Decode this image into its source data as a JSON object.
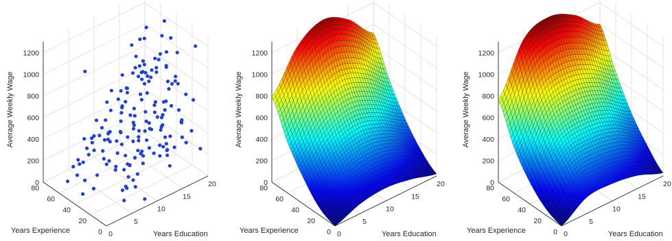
{
  "chart_data": [
    {
      "type": "scatter3d",
      "title": "",
      "xlabel": "Years Education",
      "ylabel": "Years Experience",
      "zlabel": "Average Weekly Wage",
      "xlim": [
        0,
        20
      ],
      "ylim": [
        0,
        80
      ],
      "zlim": [
        0,
        1300
      ],
      "x_ticks": [
        "0",
        "5",
        "10",
        "15",
        "20"
      ],
      "y_ticks": [
        "0",
        "20",
        "40",
        "60",
        "80"
      ],
      "z_ticks": [
        "0",
        "200",
        "400",
        "600",
        "800",
        "1000",
        "1200"
      ],
      "grid": true,
      "marker_color": "#1f3fd8",
      "points": [
        {
          "x": 2.7,
          "y": 44.5,
          "z": 1143
        },
        {
          "x": 18.2,
          "y": 4.3,
          "z": 1223
        },
        {
          "x": 10.4,
          "y": 3.6,
          "z": 1207
        },
        {
          "x": 7.5,
          "y": 41.8,
          "z": 868
        },
        {
          "x": 14.1,
          "y": 58.6,
          "z": 1052
        },
        {
          "x": 19.8,
          "y": 53.9,
          "z": 1167
        },
        {
          "x": 17.9,
          "y": 64.7,
          "z": 1096
        },
        {
          "x": 17.9,
          "y": 44.8,
          "z": 1120
        },
        {
          "x": 17.4,
          "y": 63.8,
          "z": 1010
        },
        {
          "x": 15.8,
          "y": 40.2,
          "z": 982
        },
        {
          "x": 11.8,
          "y": 22.1,
          "z": 955
        },
        {
          "x": 13.9,
          "y": 45.0,
          "z": 872
        },
        {
          "x": 13.5,
          "y": 30.6,
          "z": 909
        },
        {
          "x": 13.1,
          "y": 32.3,
          "z": 921
        },
        {
          "x": 18.7,
          "y": 30.6,
          "z": 1018
        },
        {
          "x": 14.6,
          "y": 36.5,
          "z": 921
        },
        {
          "x": 18.1,
          "y": 40.4,
          "z": 988
        },
        {
          "x": 15.0,
          "y": 59.0,
          "z": 924
        },
        {
          "x": 17.6,
          "y": 70.8,
          "z": 963
        },
        {
          "x": 19.5,
          "y": 43.9,
          "z": 1067
        },
        {
          "x": 18.0,
          "y": 40.1,
          "z": 864
        },
        {
          "x": 17.8,
          "y": 46.3,
          "z": 946
        },
        {
          "x": 16.4,
          "y": 59.0,
          "z": 849
        },
        {
          "x": 10.6,
          "y": 41.8,
          "z": 817
        },
        {
          "x": 13.7,
          "y": 43.2,
          "z": 822
        },
        {
          "x": 12.4,
          "y": 35.1,
          "z": 704
        },
        {
          "x": 10.5,
          "y": 49.1,
          "z": 759
        },
        {
          "x": 15.5,
          "y": 63.1,
          "z": 787
        },
        {
          "x": 17.6,
          "y": 30.0,
          "z": 757
        },
        {
          "x": 17.5,
          "y": 36.7,
          "z": 880
        },
        {
          "x": 13.1,
          "y": 32.6,
          "z": 762
        },
        {
          "x": 14.1,
          "y": 50.2,
          "z": 804
        },
        {
          "x": 13.3,
          "y": 23.4,
          "z": 722
        },
        {
          "x": 18.4,
          "y": 52.2,
          "z": 850
        },
        {
          "x": 13.6,
          "y": 67.3,
          "z": 742
        },
        {
          "x": 15.9,
          "y": 54.1,
          "z": 852
        },
        {
          "x": 16.3,
          "y": 41.5,
          "z": 837
        },
        {
          "x": 13.6,
          "y": 26.6,
          "z": 669
        },
        {
          "x": 12.3,
          "y": 53.7,
          "z": 720
        },
        {
          "x": 17.7,
          "y": 13.2,
          "z": 743
        },
        {
          "x": 14.2,
          "y": 15.8,
          "z": 747
        },
        {
          "x": 9.2,
          "y": 17.9,
          "z": 578
        },
        {
          "x": 11.8,
          "y": 51.8,
          "z": 615
        },
        {
          "x": 11.2,
          "y": 36.1,
          "z": 578
        },
        {
          "x": 9.6,
          "y": 56.2,
          "z": 563
        },
        {
          "x": 10.7,
          "y": 33.7,
          "z": 669
        },
        {
          "x": 15.8,
          "y": 68.1,
          "z": 705
        },
        {
          "x": 11.9,
          "y": 27.1,
          "z": 644
        },
        {
          "x": 11.6,
          "y": 24.1,
          "z": 579
        },
        {
          "x": 9.9,
          "y": 43.6,
          "z": 661
        },
        {
          "x": 16.8,
          "y": 29.0,
          "z": 733
        },
        {
          "x": 12.0,
          "y": 50.7,
          "z": 700
        },
        {
          "x": 16.0,
          "y": 56.8,
          "z": 770
        },
        {
          "x": 16.8,
          "y": 65.9,
          "z": 759
        },
        {
          "x": 19.4,
          "y": 37.3,
          "z": 746
        },
        {
          "x": 8.8,
          "y": 38.3,
          "z": 572
        },
        {
          "x": 16.2,
          "y": 54.5,
          "z": 768
        },
        {
          "x": 11.1,
          "y": 70.7,
          "z": 531
        },
        {
          "x": 12.9,
          "y": 21.7,
          "z": 644
        },
        {
          "x": 14.9,
          "y": 13.6,
          "z": 699
        },
        {
          "x": 6.1,
          "y": 51.9,
          "z": 574
        },
        {
          "x": 18.6,
          "y": 32.5,
          "z": 747
        },
        {
          "x": 5.4,
          "y": 50.5,
          "z": 452
        },
        {
          "x": 18.2,
          "y": 26.4,
          "z": 762
        },
        {
          "x": 11.5,
          "y": 19.1,
          "z": 538
        },
        {
          "x": 16.5,
          "y": 33.6,
          "z": 596
        },
        {
          "x": 15.4,
          "y": 50.8,
          "z": 703
        },
        {
          "x": 7.5,
          "y": 30.5,
          "z": 544
        },
        {
          "x": 7.9,
          "y": 56.5,
          "z": 440
        },
        {
          "x": 9.5,
          "y": 62.3,
          "z": 445
        },
        {
          "x": 10.7,
          "y": 33.7,
          "z": 514
        },
        {
          "x": 17.9,
          "y": 37.3,
          "z": 736
        },
        {
          "x": 9.1,
          "y": 17.8,
          "z": 489
        },
        {
          "x": 14.0,
          "y": 18.7,
          "z": 610
        },
        {
          "x": 12.5,
          "y": 10.8,
          "z": 573
        },
        {
          "x": 7.1,
          "y": 41.1,
          "z": 500
        },
        {
          "x": 12.7,
          "y": 62.0,
          "z": 488
        },
        {
          "x": 8.0,
          "y": 38.5,
          "z": 406
        },
        {
          "x": 16.6,
          "y": 15.0,
          "z": 614
        },
        {
          "x": 6.4,
          "y": 43.4,
          "z": 428
        },
        {
          "x": 13.0,
          "y": 12.6,
          "z": 570
        },
        {
          "x": 5.3,
          "y": 52.7,
          "z": 423
        },
        {
          "x": 13.4,
          "y": 71.2,
          "z": 503
        },
        {
          "x": 14.5,
          "y": 23.2,
          "z": 551
        },
        {
          "x": 15.2,
          "y": 54.7,
          "z": 591
        },
        {
          "x": 7.5,
          "y": 12.1,
          "z": 396
        },
        {
          "x": 8.1,
          "y": 47.5,
          "z": 352
        },
        {
          "x": 8.6,
          "y": 53.1,
          "z": 386
        },
        {
          "x": 10.6,
          "y": 33.9,
          "z": 483
        },
        {
          "x": 3.8,
          "y": 46.8,
          "z": 335
        },
        {
          "x": 4.7,
          "y": 54.9,
          "z": 332
        },
        {
          "x": 19.7,
          "y": 16.7,
          "z": 627
        },
        {
          "x": 10.7,
          "y": 50.6,
          "z": 361
        },
        {
          "x": 10.1,
          "y": 38.1,
          "z": 396
        },
        {
          "x": 16.7,
          "y": 12.6,
          "z": 514
        },
        {
          "x": 16.5,
          "y": 10.6,
          "z": 546
        },
        {
          "x": 16.7,
          "y": 33.4,
          "z": 518
        },
        {
          "x": 5.1,
          "y": 60.9,
          "z": 380
        },
        {
          "x": 8.1,
          "y": 60.9,
          "z": 341
        },
        {
          "x": 14.2,
          "y": 22.5,
          "z": 446
        },
        {
          "x": 5.5,
          "y": 38.6,
          "z": 299
        },
        {
          "x": 14.0,
          "y": 71.0,
          "z": 364
        },
        {
          "x": 4.1,
          "y": 62.2,
          "z": 202
        },
        {
          "x": 11.3,
          "y": 31.9,
          "z": 401
        },
        {
          "x": 11.0,
          "y": 16.4,
          "z": 385
        },
        {
          "x": 13.9,
          "y": 59.1,
          "z": 405
        },
        {
          "x": 7.7,
          "y": 20.0,
          "z": 286
        },
        {
          "x": 10.3,
          "y": 6.1,
          "z": 404
        },
        {
          "x": 9.8,
          "y": 59.8,
          "z": 337
        },
        {
          "x": 3.2,
          "y": 50.0,
          "z": 262
        },
        {
          "x": 8.3,
          "y": 71.4,
          "z": 217
        },
        {
          "x": 10.2,
          "y": 46.1,
          "z": 286
        },
        {
          "x": 5.8,
          "y": 25.8,
          "z": 254
        },
        {
          "x": 2.9,
          "y": 60.7,
          "z": 174
        },
        {
          "x": 7.2,
          "y": 61.9,
          "z": 220
        },
        {
          "x": 9.1,
          "y": 12.2,
          "z": 307
        },
        {
          "x": 18.4,
          "y": 23.1,
          "z": 413
        },
        {
          "x": 7.5,
          "y": 52.9,
          "z": 253
        },
        {
          "x": 9.2,
          "y": 35.1,
          "z": 261
        },
        {
          "x": 8.0,
          "y": 48.0,
          "z": 174
        },
        {
          "x": 15.3,
          "y": 44.3,
          "z": 374
        },
        {
          "x": 14.8,
          "y": 61.1,
          "z": 305
        },
        {
          "x": 10.8,
          "y": 24.5,
          "z": 317
        },
        {
          "x": 10.8,
          "y": 67.3,
          "z": 210
        },
        {
          "x": 6.7,
          "y": 9.2,
          "z": 223
        },
        {
          "x": 8.3,
          "y": 26.6,
          "z": 246
        },
        {
          "x": 3.7,
          "y": 57.9,
          "z": 194
        },
        {
          "x": 18.7,
          "y": 12.5,
          "z": 385
        },
        {
          "x": 12.7,
          "y": 14.0,
          "z": 284
        },
        {
          "x": 5.8,
          "y": 11.4,
          "z": 158
        },
        {
          "x": 8.5,
          "y": 15.2,
          "z": 207
        },
        {
          "x": 14.6,
          "y": 26.4,
          "z": 275
        },
        {
          "x": 8.4,
          "y": 31.7,
          "z": 166
        },
        {
          "x": 3.6,
          "y": 50.5,
          "z": 83
        },
        {
          "x": 10.5,
          "y": 53.5,
          "z": 160
        },
        {
          "x": 15.9,
          "y": 27.9,
          "z": 313
        },
        {
          "x": 14.7,
          "y": 18.6,
          "z": 327
        },
        {
          "x": 7.9,
          "y": 22.9,
          "z": 155
        },
        {
          "x": 18.1,
          "y": 51.8,
          "z": 328
        },
        {
          "x": 14.0,
          "y": 18.1,
          "z": 318
        },
        {
          "x": 3.3,
          "y": 37.3,
          "z": 80
        },
        {
          "x": 13.0,
          "y": 40.1,
          "z": 165
        },
        {
          "x": 14.1,
          "y": 39.7,
          "z": 267
        },
        {
          "x": 2.2,
          "y": 44.1,
          "z": 21
        },
        {
          "x": 13.4,
          "y": 5.9,
          "z": 217
        },
        {
          "x": 15.8,
          "y": 24.5,
          "z": 216
        },
        {
          "x": 4.6,
          "y": 66.6,
          "z": 26
        },
        {
          "x": 16.2,
          "y": 47.2,
          "z": 280
        },
        {
          "x": 14.2,
          "y": 51.5,
          "z": 109
        },
        {
          "x": 6.7,
          "y": 18.6,
          "z": 117
        },
        {
          "x": 14.7,
          "y": 60.8,
          "z": 135
        },
        {
          "x": 9.2,
          "y": 47.2,
          "z": 98
        },
        {
          "x": 2.5,
          "y": 65.2,
          "z": 25
        },
        {
          "x": 16.2,
          "y": 27.1,
          "z": 142
        },
        {
          "x": 19.2,
          "y": 22.5,
          "z": 214
        },
        {
          "x": 19.5,
          "y": 29.5,
          "z": 220
        },
        {
          "x": 7.3,
          "y": 58.6,
          "z": 4
        },
        {
          "x": 6.9,
          "y": 24.0,
          "z": 49
        },
        {
          "x": 18.1,
          "y": 30.3,
          "z": 156
        },
        {
          "x": 14.5,
          "y": 46.7,
          "z": 77
        },
        {
          "x": 10.0,
          "y": 64.1,
          "z": 15
        },
        {
          "x": 19.2,
          "y": 42.8,
          "z": 169
        },
        {
          "x": 17.6,
          "y": 64.4,
          "z": 145
        },
        {
          "x": 19.8,
          "y": 8.4,
          "z": 215
        },
        {
          "x": 12.5,
          "y": 50.9,
          "z": 13
        },
        {
          "x": 5.9,
          "y": 15.5,
          "z": 20
        },
        {
          "x": 18.4,
          "y": 41.7,
          "z": 62
        },
        {
          "x": 9.7,
          "y": 25.6,
          "z": 8
        },
        {
          "x": 8.6,
          "y": 6.7,
          "z": 16
        }
      ]
    },
    {
      "type": "surface3d",
      "title": "",
      "xlabel": "Years Education",
      "ylabel": "Years Experience",
      "zlabel": "Average Weekly Wage",
      "xlim": [
        0,
        20
      ],
      "ylim": [
        0,
        80
      ],
      "zlim": [
        0,
        1300
      ],
      "x_ticks": [
        "0",
        "5",
        "10",
        "15",
        "20"
      ],
      "y_ticks": [
        "0",
        "20",
        "40",
        "60",
        "80"
      ],
      "z_ticks": [
        "0",
        "200",
        "400",
        "600",
        "800",
        "1000",
        "1200"
      ],
      "grid": true,
      "colormap": "jet",
      "mesh_size": [
        41,
        41
      ],
      "surface_values": {
        "x": [
          0,
          5,
          10,
          15,
          20
        ],
        "y": [
          0,
          20,
          40,
          60,
          80
        ],
        "z": [
          [
            0,
            90,
            120,
            85,
            20
          ],
          [
            70,
            260,
            320,
            270,
            140
          ],
          [
            240,
            470,
            560,
            480,
            330
          ],
          [
            470,
            760,
            880,
            790,
            590
          ],
          [
            790,
            1140,
            1270,
            1160,
            920
          ]
        ]
      }
    },
    {
      "type": "surface3d",
      "title": "",
      "xlabel": "Years Education",
      "ylabel": "Years Experience",
      "zlabel": "Average Weekly Wage",
      "xlim": [
        0,
        20
      ],
      "ylim": [
        0,
        80
      ],
      "zlim": [
        0,
        1300
      ],
      "x_ticks": [
        "0",
        "5",
        "10",
        "15",
        "20"
      ],
      "y_ticks": [
        "0",
        "20",
        "40",
        "60",
        "80"
      ],
      "z_ticks": [
        "0",
        "200",
        "400",
        "600",
        "800",
        "1000",
        "1200"
      ],
      "grid": true,
      "colormap": "jet",
      "mesh_size": [
        41,
        41
      ],
      "surface_values": {
        "x": [
          0,
          5,
          10,
          15,
          20
        ],
        "y": [
          0,
          20,
          40,
          60,
          80
        ],
        "z": [
          [
            0,
            150,
            160,
            120,
            30
          ],
          [
            60,
            330,
            360,
            310,
            180
          ],
          [
            200,
            540,
            600,
            540,
            380
          ],
          [
            420,
            830,
            910,
            830,
            660
          ],
          [
            760,
            1210,
            1300,
            1200,
            1000
          ]
        ]
      }
    }
  ]
}
